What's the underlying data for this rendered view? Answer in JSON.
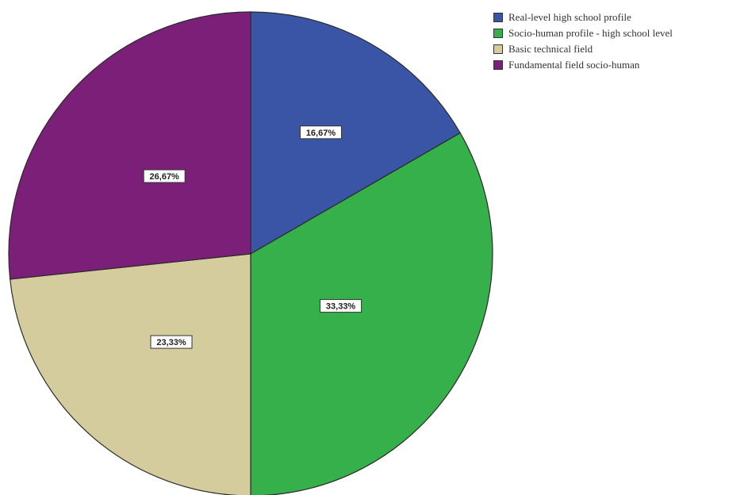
{
  "chart_data": {
    "type": "pie",
    "title": "",
    "categories": [
      "Real-level high school profile",
      "Socio-human profile - high school level",
      "Basic technical field",
      "Fundamental field socio-human"
    ],
    "values": [
      16.67,
      33.33,
      23.33,
      26.67
    ],
    "value_labels": [
      "16,67%",
      "33,33%",
      "23,33%",
      "26,67%"
    ],
    "colors": [
      "#3a55a6",
      "#35b04a",
      "#d4cc9c",
      "#7b1f78"
    ],
    "start_angle": "12 o'clock",
    "direction": "clockwise",
    "legend_position": "top-right"
  }
}
